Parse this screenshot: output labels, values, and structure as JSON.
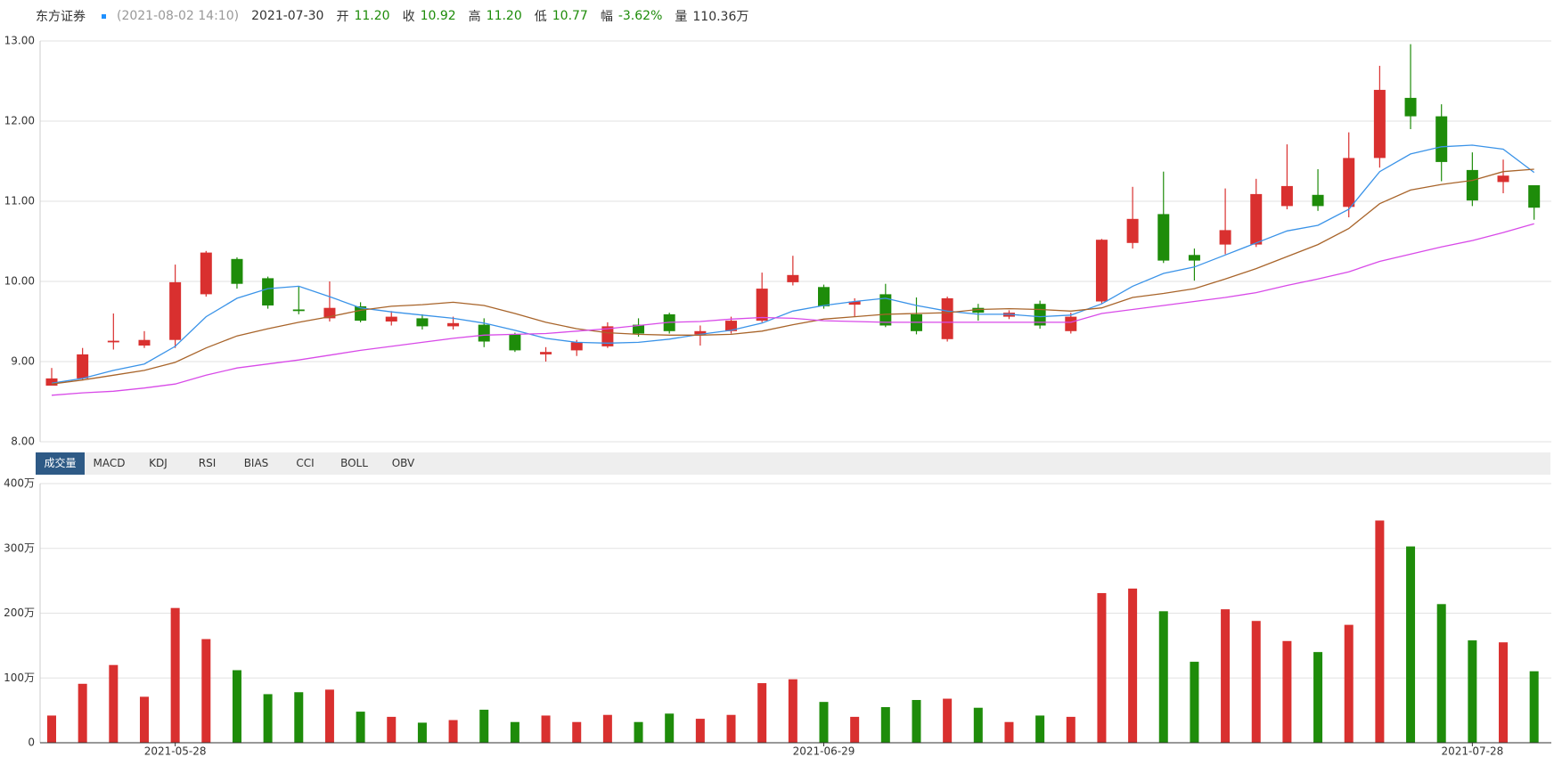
{
  "header": {
    "name": "东方证券",
    "time": "(2021-08-02 14:10)",
    "date": "2021-07-30",
    "open_label": "开",
    "open": "11.20",
    "close_label": "收",
    "close": "10.92",
    "high_label": "高",
    "high": "11.20",
    "low_label": "低",
    "low": "10.77",
    "change_label": "幅",
    "change": "-3.62%",
    "volume_label": "量",
    "volume": "110.36万"
  },
  "tabs": [
    "成交量",
    "MACD",
    "KDJ",
    "RSI",
    "BIAS",
    "CCI",
    "BOLL",
    "OBV"
  ],
  "chart_data": [
    {
      "type": "candlestick",
      "up_color": "#d9302f",
      "down_color": "#1e8c0a",
      "grid": true,
      "ylim": [
        8,
        13
      ],
      "yticks": [
        {
          "value": 8,
          "label": "8.00"
        },
        {
          "value": 9,
          "label": "9.00"
        },
        {
          "value": 10,
          "label": "10.00"
        },
        {
          "value": 11,
          "label": "11.00"
        },
        {
          "value": 12,
          "label": "12.00"
        },
        {
          "value": 13,
          "label": "13.00"
        }
      ],
      "open": [
        8.7,
        8.79,
        9.24,
        9.2,
        9.27,
        9.84,
        10.28,
        10.04,
        9.65,
        9.54,
        9.69,
        9.5,
        9.54,
        9.44,
        9.46,
        9.34,
        9.09,
        9.14,
        9.19,
        9.46,
        9.59,
        9.34,
        9.38,
        9.51,
        9.99,
        9.93,
        9.71,
        9.84,
        9.59,
        9.28,
        9.67,
        9.56,
        9.72,
        9.38,
        9.75,
        10.48,
        10.84,
        10.33,
        10.46,
        10.46,
        10.94,
        11.08,
        10.93,
        11.54,
        12.29,
        12.06,
        11.39,
        11.24,
        11.2
      ],
      "high": [
        8.92,
        9.17,
        9.6,
        9.38,
        10.21,
        10.38,
        10.3,
        10.06,
        9.94,
        10.0,
        9.74,
        9.63,
        9.59,
        9.56,
        9.54,
        9.36,
        9.18,
        9.27,
        9.49,
        9.54,
        9.61,
        9.45,
        9.56,
        10.11,
        10.32,
        9.96,
        9.79,
        9.97,
        9.8,
        9.81,
        9.72,
        9.64,
        9.76,
        9.61,
        10.53,
        11.18,
        11.37,
        10.41,
        11.16,
        11.28,
        11.71,
        11.4,
        11.86,
        12.69,
        12.96,
        12.21,
        11.61,
        11.52,
        11.2
      ],
      "low": [
        8.7,
        8.77,
        9.15,
        9.17,
        9.17,
        9.81,
        9.91,
        9.66,
        9.59,
        9.5,
        9.49,
        9.45,
        9.4,
        9.4,
        9.18,
        9.12,
        9.0,
        9.07,
        9.17,
        9.31,
        9.35,
        9.2,
        9.35,
        9.49,
        9.95,
        9.66,
        9.56,
        9.43,
        9.34,
        9.25,
        9.51,
        9.53,
        9.41,
        9.35,
        9.72,
        10.41,
        10.23,
        10.01,
        10.34,
        10.43,
        10.9,
        10.88,
        10.8,
        11.42,
        11.9,
        11.25,
        10.94,
        11.1,
        10.77
      ],
      "close": [
        8.79,
        9.09,
        9.26,
        9.27,
        9.99,
        10.36,
        9.97,
        9.7,
        9.63,
        9.67,
        9.51,
        9.56,
        9.44,
        9.48,
        9.25,
        9.14,
        9.12,
        9.24,
        9.44,
        9.35,
        9.38,
        9.38,
        9.51,
        9.91,
        10.08,
        9.69,
        9.75,
        9.45,
        9.38,
        9.79,
        9.61,
        9.61,
        9.45,
        9.56,
        10.52,
        10.78,
        10.26,
        10.26,
        10.64,
        11.09,
        11.19,
        10.94,
        11.54,
        12.39,
        12.06,
        11.49,
        11.01,
        11.32,
        10.92
      ],
      "series": [
        {
          "color": "#3a93e8",
          "values": [
            8.73,
            8.79,
            8.89,
            8.97,
            9.19,
            9.56,
            9.79,
            9.91,
            9.94,
            9.81,
            9.67,
            9.62,
            9.58,
            9.54,
            9.48,
            9.39,
            9.29,
            9.24,
            9.23,
            9.24,
            9.28,
            9.34,
            9.39,
            9.48,
            9.63,
            9.7,
            9.75,
            9.79,
            9.7,
            9.63,
            9.59,
            9.59,
            9.56,
            9.58,
            9.72,
            9.94,
            10.1,
            10.18,
            10.33,
            10.48,
            10.63,
            10.7,
            10.9,
            11.37,
            11.59,
            11.68,
            11.7,
            11.65,
            11.36
          ]
        },
        {
          "color": "#a8642a",
          "values": [
            8.72,
            8.77,
            8.83,
            8.89,
            8.99,
            9.17,
            9.32,
            9.41,
            9.49,
            9.56,
            9.64,
            9.69,
            9.71,
            9.74,
            9.7,
            9.6,
            9.49,
            9.41,
            9.36,
            9.34,
            9.33,
            9.33,
            9.34,
            9.38,
            9.46,
            9.53,
            9.56,
            9.59,
            9.6,
            9.61,
            9.65,
            9.66,
            9.65,
            9.63,
            9.67,
            9.8,
            9.85,
            9.91,
            10.03,
            10.16,
            10.31,
            10.46,
            10.66,
            10.97,
            11.14,
            11.21,
            11.26,
            11.37,
            11.4
          ]
        },
        {
          "color": "#d84ae8",
          "values": [
            8.58,
            8.61,
            8.63,
            8.67,
            8.72,
            8.83,
            8.92,
            8.97,
            9.02,
            9.08,
            9.14,
            9.19,
            9.24,
            9.29,
            9.33,
            9.34,
            9.35,
            9.38,
            9.41,
            9.45,
            9.49,
            9.5,
            9.53,
            9.55,
            9.54,
            9.51,
            9.5,
            9.49,
            9.49,
            9.49,
            9.49,
            9.49,
            9.49,
            9.49,
            9.6,
            9.65,
            9.7,
            9.75,
            9.8,
            9.86,
            9.95,
            10.03,
            10.12,
            10.25,
            10.34,
            10.43,
            10.51,
            10.61,
            10.72
          ]
        }
      ]
    },
    {
      "type": "bar",
      "up_color": "#d9302f",
      "down_color": "#1e8c0a",
      "grid": true,
      "ylim": [
        0,
        400
      ],
      "yticks": [
        0,
        {
          "value": 100,
          "label": "100万"
        },
        {
          "value": 200,
          "label": "200万"
        },
        {
          "value": 300,
          "label": "300万"
        },
        {
          "value": 400,
          "label": "400万"
        }
      ],
      "categories": [
        null,
        null,
        null,
        null,
        "2021-05-28",
        null,
        null,
        null,
        null,
        null,
        null,
        null,
        null,
        null,
        null,
        null,
        null,
        null,
        null,
        null,
        null,
        null,
        null,
        null,
        null,
        "2021-06-29",
        null,
        null,
        null,
        null,
        null,
        null,
        null,
        null,
        null,
        null,
        null,
        null,
        null,
        null,
        null,
        null,
        null,
        null,
        null,
        null,
        "2021-07-28",
        null,
        null
      ],
      "values": [
        42,
        91,
        120,
        71,
        208,
        160,
        112,
        75,
        78,
        82,
        48,
        40,
        31,
        35,
        51,
        32,
        42,
        32,
        43,
        32,
        45,
        37,
        43,
        92,
        98,
        63,
        40,
        55,
        66,
        68,
        54,
        32,
        42,
        40,
        231,
        238,
        203,
        125,
        206,
        188,
        157,
        140,
        182,
        343,
        303,
        214,
        158,
        155,
        110.36
      ]
    }
  ]
}
